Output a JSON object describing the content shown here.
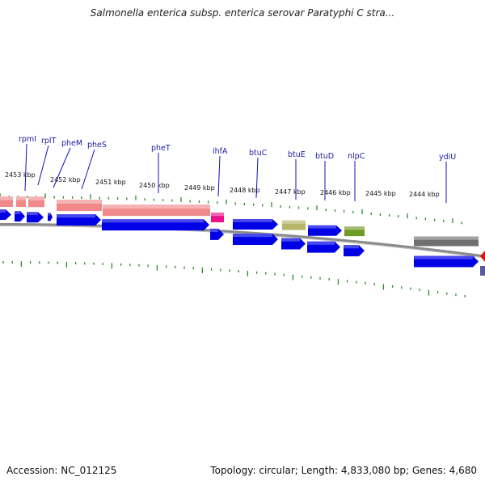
{
  "title": "Salmonella enterica subsp. enterica serovar Paratyphi C stra...",
  "footer": {
    "accession": "Accession: NC_012125",
    "topology": "Topology: circular; Length: 4,833,080 bp; Genes: 4,680"
  },
  "colors": {
    "background": "#ffffff",
    "backbone": "#8a8a8a",
    "cds": "#0000e6",
    "trna": "#f08a8a",
    "tick": "#2a8a2a",
    "label_leader": "#1010c0",
    "ihfA_feature": "#ee1188",
    "btuE_feature": "#b6b66a",
    "nlpC_feature": "#6e9a26",
    "ydiU_feature": "#707070",
    "edge_marker_red": "#dd1111",
    "edge_marker_purple": "#5a5a9a"
  },
  "gene_labels": [
    {
      "name": "rpmI"
    },
    {
      "name": "rplT"
    },
    {
      "name": "pheM"
    },
    {
      "name": "pheS"
    },
    {
      "name": "pheT"
    },
    {
      "name": "ihfA"
    },
    {
      "name": "btuC"
    },
    {
      "name": "btuE"
    },
    {
      "name": "btuD"
    },
    {
      "name": "nlpC"
    },
    {
      "name": "ydiU"
    }
  ],
  "kbp_labels": [
    "2453 kbp",
    "2452 kbp",
    "2451 kbp",
    "2450 kbp",
    "2449 kbp",
    "2448 kbp",
    "2447 kbp",
    "2446 kbp",
    "2445 kbp",
    "2444 kbp"
  ]
}
